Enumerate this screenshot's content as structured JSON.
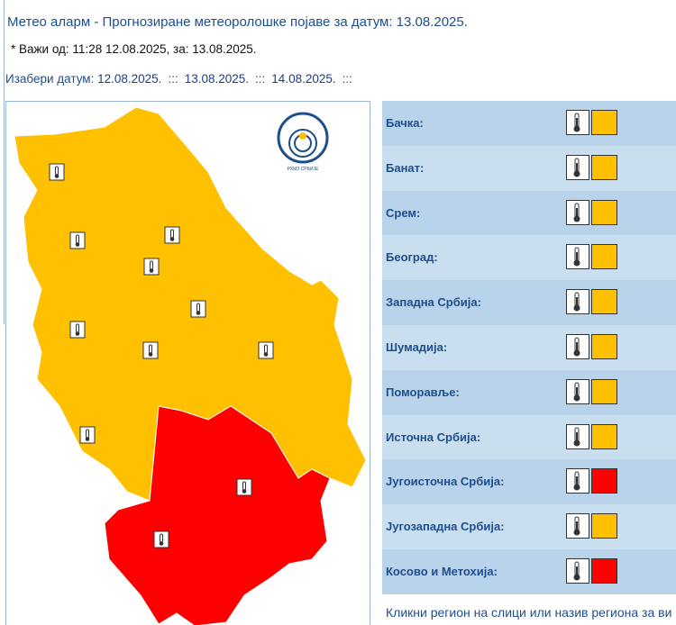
{
  "header": {
    "title": "Метео аларм - Прогнозиране метеоролошке појаве за датум:  13.08.2025.",
    "valid": "* Важи од: 11:28 12.08.2025, за: 13.08.2025.",
    "date_picker": {
      "label": "Изабери датум:",
      "separator": ":::",
      "dates": [
        "12.08.2025.",
        "13.08.2025.",
        "14.08.2025."
      ]
    }
  },
  "map": {
    "logo_text": "РХМЗ СРБИЈЕ"
  },
  "regions": [
    {
      "name": "Бачка:",
      "color": "#ffc000"
    },
    {
      "name": "Банат:",
      "color": "#ffc000"
    },
    {
      "name": "Срем:",
      "color": "#ffc000"
    },
    {
      "name": "Београд:",
      "color": "#ffc000"
    },
    {
      "name": "Западна Србија:",
      "color": "#ffc000"
    },
    {
      "name": "Шумадија:",
      "color": "#ffc000"
    },
    {
      "name": "Поморавље:",
      "color": "#ffc000"
    },
    {
      "name": "Источна Србија:",
      "color": "#ffc000"
    },
    {
      "name": "Југоисточна Србија:",
      "color": "#ff0000"
    },
    {
      "name": "Југозападна Србија:",
      "color": "#ffc000"
    },
    {
      "name": "Косово и Метохија:",
      "color": "#ff0000"
    }
  ],
  "footer": "Кликни регион на слици или назив региона за ви"
}
